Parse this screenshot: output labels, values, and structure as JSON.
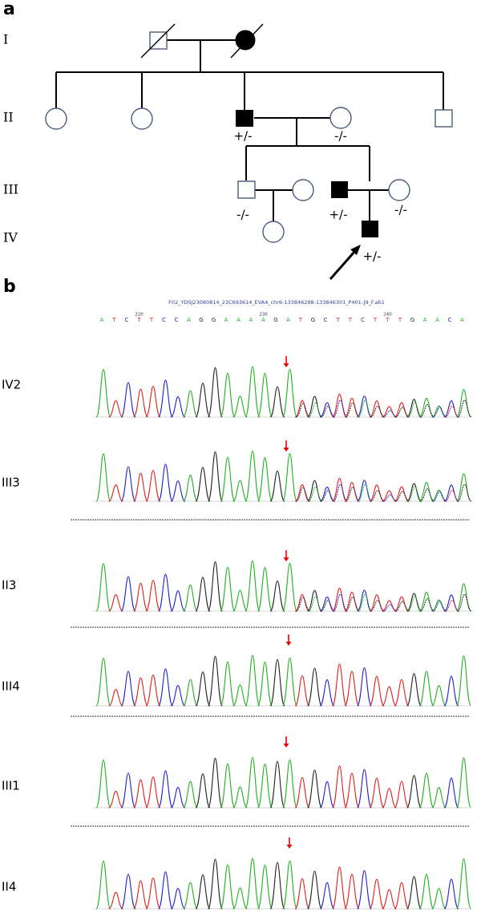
{
  "panel_a": {
    "label": "a",
    "generations": [
      "I",
      "II",
      "III",
      "IV"
    ],
    "genotypes": [
      "+/-",
      "-/-",
      "-/-",
      "+/-",
      "-/-",
      "+/-"
    ]
  },
  "panel_b": {
    "label": "b",
    "file_name": "F02_YDSJ23080814_23C693614_EVA4_chr6-133846298-133846301_P401-J9_F.ab1",
    "bases": [
      "A",
      "T",
      "C",
      "T",
      "T",
      "C",
      "C",
      "A",
      "G",
      "G",
      "A",
      "A",
      "A",
      "A",
      "G",
      "A",
      "T",
      "G",
      "C",
      "T",
      "T",
      "C",
      "T",
      "T",
      "T",
      "G",
      "A",
      "A",
      "C",
      "A"
    ],
    "positions": [
      220,
      230,
      240
    ],
    "samples": [
      "IV2",
      "III3",
      "II3",
      "III4",
      "III1",
      "II4"
    ]
  }
}
